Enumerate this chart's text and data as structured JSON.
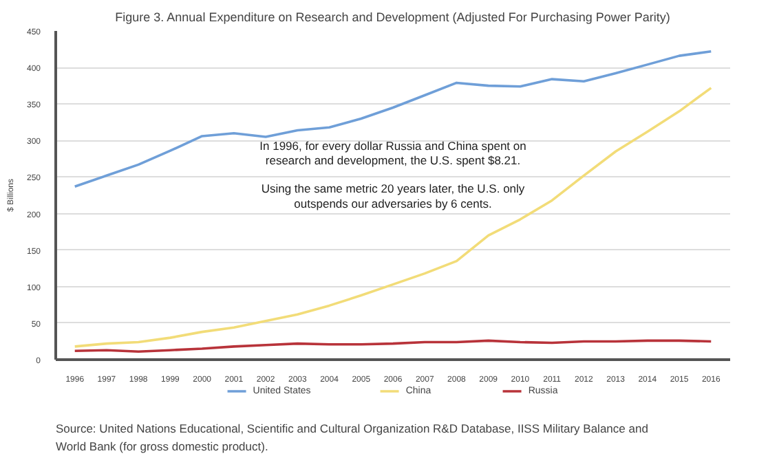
{
  "chart_data": {
    "type": "line",
    "title": "Figure 3. Annual Expenditure on Research and Development (Adjusted For Purchasing Power Parity)",
    "ylabel": "$ Billions",
    "categories": [
      "1996",
      "1997",
      "1998",
      "1999",
      "2000",
      "2001",
      "2002",
      "2003",
      "2004",
      "2005",
      "2006",
      "2007",
      "2008",
      "2009",
      "2010",
      "2011",
      "2012",
      "2013",
      "2014",
      "2015",
      "2016"
    ],
    "series": [
      {
        "name": "United States",
        "color": "#6f9fd8",
        "values": [
          237,
          252,
          267,
          286,
          306,
          310,
          305,
          314,
          318,
          330,
          345,
          362,
          379,
          375,
          374,
          384,
          381,
          392,
          404,
          416,
          422
        ]
      },
      {
        "name": "China",
        "color": "#f2dc78",
        "values": [
          18,
          22,
          24,
          30,
          38,
          44,
          53,
          62,
          74,
          88,
          103,
          118,
          135,
          170,
          192,
          218,
          252,
          285,
          312,
          340,
          372
        ]
      },
      {
        "name": "Russia",
        "color": "#b8333a",
        "values": [
          12,
          13,
          11,
          13,
          15,
          18,
          20,
          22,
          21,
          21,
          22,
          24,
          24,
          26,
          24,
          23,
          25,
          25,
          26,
          26,
          25
        ]
      }
    ],
    "ylim": [
      0,
      450
    ],
    "yticks": [
      0,
      50,
      100,
      150,
      200,
      250,
      300,
      350,
      400,
      450
    ],
    "grid": "y",
    "legend": "bottom",
    "annotations": [
      "In 1996, for every dollar Russia and China spent on research and development, the U.S. spent $8.21.",
      "Using the same metric 20 years later, the U.S. only outspends our adversaries by 6 cents.",
      "Source: United Nations Educational, Scientific and Cultural Organization R&D Database, IISS Military Balance and World Bank (for gross domestic product)."
    ]
  }
}
